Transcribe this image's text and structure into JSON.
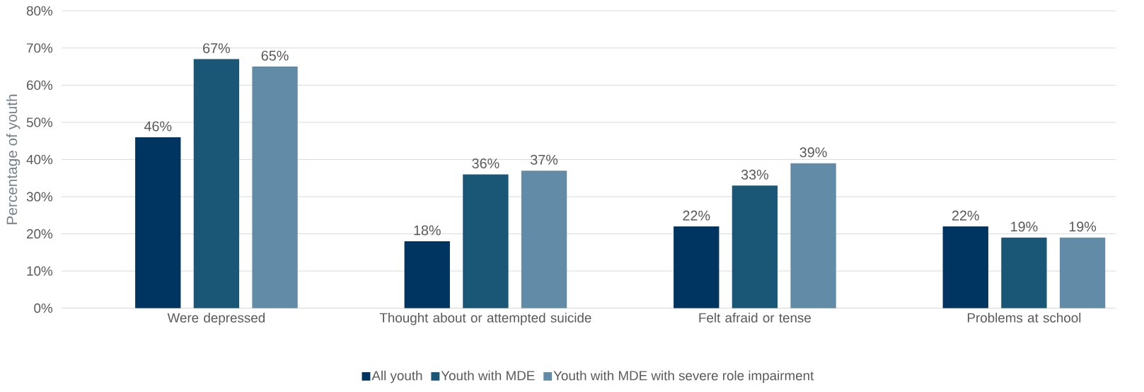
{
  "chart_data": {
    "type": "bar",
    "ylabel": "Percentage of youth",
    "categories": [
      "Were depressed",
      "Thought about or attempted suicide",
      "Felt afraid or tense",
      "Problems at school"
    ],
    "series": [
      {
        "name": "All youth",
        "color": "#003561",
        "values": [
          46,
          18,
          22,
          22
        ],
        "value_labels": [
          "46%",
          "18%",
          "22%",
          "22%"
        ]
      },
      {
        "name": "Youth with MDE",
        "color": "#1a5777",
        "values": [
          67,
          36,
          33,
          19
        ],
        "value_labels": [
          "67%",
          "36%",
          "33%",
          "19%"
        ]
      },
      {
        "name": "Youth with MDE with severe role impairment",
        "color": "#618ba6",
        "values": [
          65,
          37,
          39,
          19
        ],
        "value_labels": [
          "65%",
          "37%",
          "39%",
          "19%"
        ]
      }
    ],
    "ylim": [
      0,
      80
    ],
    "yticks": [
      {
        "value": 0,
        "label": "0%"
      },
      {
        "value": 10,
        "label": "10%"
      },
      {
        "value": 20,
        "label": "20%"
      },
      {
        "value": 30,
        "label": "30%"
      },
      {
        "value": 40,
        "label": "40%"
      },
      {
        "value": 50,
        "label": "50%"
      },
      {
        "value": 60,
        "label": "60%"
      },
      {
        "value": 70,
        "label": "70%"
      },
      {
        "value": 80,
        "label": "80%"
      }
    ],
    "grid": "y",
    "legend": "bottom"
  }
}
